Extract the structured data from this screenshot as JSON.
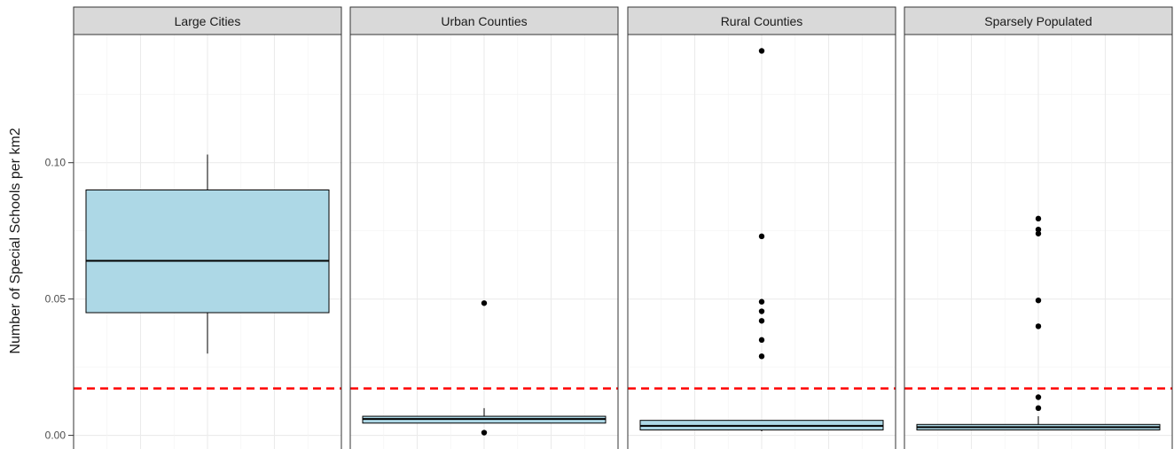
{
  "chart_data": {
    "type": "boxplot",
    "ylabel": "Number of Special Schools per km2",
    "ylim": [
      -0.005,
      0.147
    ],
    "yticks": [
      0.0,
      0.05,
      0.1
    ],
    "ytick_labels": [
      "0.00",
      "0.05",
      "0.10"
    ],
    "grid": true,
    "reference_line": {
      "value": 0.0172,
      "color": "#ff0000",
      "style": "dashed"
    },
    "box_fill": "#add8e6",
    "panel_strip_fill": "#d9d9d9",
    "panels": [
      {
        "name": "Large Cities",
        "box": {
          "whisker_low": 0.03,
          "q1": 0.045,
          "median": 0.064,
          "q3": 0.09,
          "whisker_high": 0.103
        },
        "outliers": []
      },
      {
        "name": "Urban Counties",
        "box": {
          "whisker_low": 0.0045,
          "q1": 0.0045,
          "median": 0.006,
          "q3": 0.007,
          "whisker_high": 0.01
        },
        "outliers": [
          0.0485,
          0.001
        ]
      },
      {
        "name": "Rural Counties",
        "box": {
          "whisker_low": 0.0015,
          "q1": 0.002,
          "median": 0.0035,
          "q3": 0.0055,
          "whisker_high": 0.0055
        },
        "outliers": [
          0.141,
          0.073,
          0.049,
          0.0455,
          0.042,
          0.035,
          0.029
        ]
      },
      {
        "name": "Sparsely Populated",
        "box": {
          "whisker_low": 0.002,
          "q1": 0.002,
          "median": 0.003,
          "q3": 0.004,
          "whisker_high": 0.007
        },
        "outliers": [
          0.0795,
          0.0755,
          0.074,
          0.0495,
          0.04,
          0.014,
          0.01
        ]
      }
    ]
  }
}
